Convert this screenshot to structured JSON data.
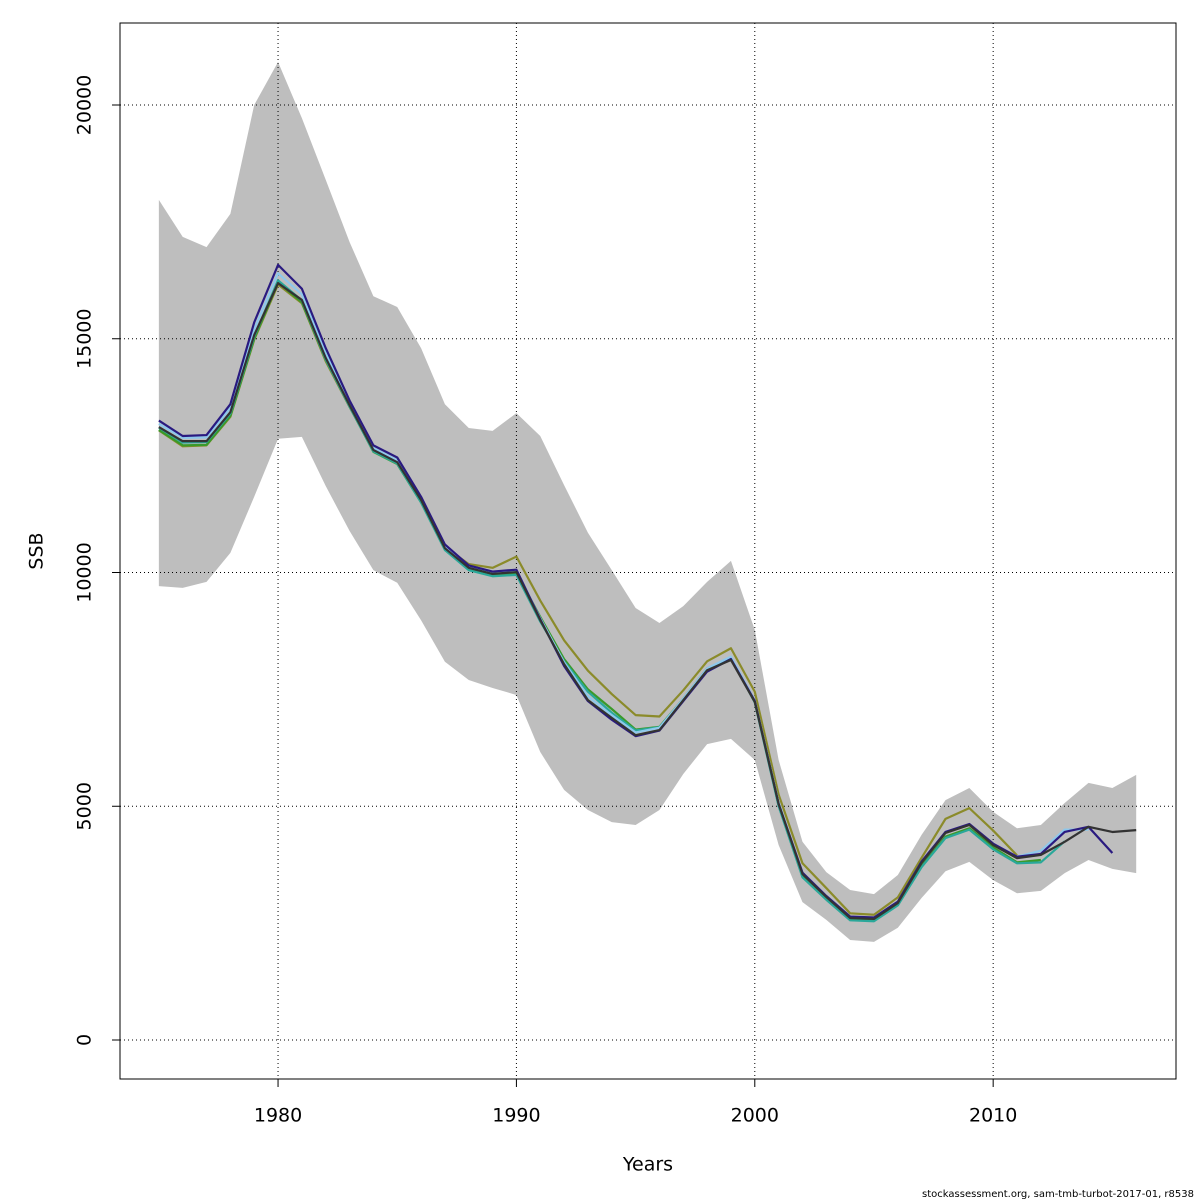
{
  "chart_data": {
    "type": "line",
    "x_label": "Years",
    "y_label": "SSB",
    "footer": "stockassessment.org, sam-tmb-turbot-2017-01, r8538",
    "x": [
      1975,
      1976,
      1977,
      1978,
      1979,
      1980,
      1981,
      1982,
      1983,
      1984,
      1985,
      1986,
      1987,
      1988,
      1989,
      1990,
      1991,
      1992,
      1993,
      1994,
      1995,
      1996,
      1997,
      1998,
      1999,
      2000,
      2001,
      2002,
      2003,
      2004,
      2005,
      2006,
      2007,
      2008,
      2009,
      2010,
      2011,
      2012,
      2013,
      2014,
      2015,
      2016
    ],
    "xlim": [
      1973.37,
      2017.67
    ],
    "xticks": [
      1980,
      1990,
      2000,
      2010
    ],
    "ylim": [
      -834,
      21754
    ],
    "yticks": [
      0,
      5000,
      10000,
      15000,
      20000
    ],
    "grid": true,
    "band": {
      "color": "#bebebe",
      "upper": [
        17970,
        17180,
        16960,
        17670,
        20000,
        20920,
        19720,
        18400,
        17070,
        15910,
        15680,
        14800,
        13600,
        13090,
        13030,
        13410,
        12920,
        11870,
        10850,
        10050,
        9240,
        8920,
        9280,
        9800,
        10250,
        8770,
        5990,
        4240,
        3590,
        3210,
        3120,
        3530,
        4390,
        5130,
        5390,
        4880,
        4530,
        4600,
        5070,
        5500,
        5390,
        5670
      ],
      "lower": [
        9710,
        9670,
        9800,
        10420,
        11620,
        12860,
        12900,
        11850,
        10890,
        10050,
        9780,
        8980,
        8090,
        7700,
        7530,
        7380,
        6160,
        5350,
        4920,
        4660,
        4600,
        4920,
        5690,
        6330,
        6440,
        5990,
        4170,
        2950,
        2570,
        2140,
        2100,
        2400,
        3040,
        3610,
        3810,
        3420,
        3140,
        3190,
        3570,
        3850,
        3660,
        3570
      ]
    },
    "series": [
      {
        "color": "#8b8b2a",
        "values": [
          13040,
          12700,
          12720,
          13330,
          14980,
          16160,
          15760,
          14520,
          13540,
          12600,
          12340,
          11530,
          10550,
          10180,
          10100,
          10340,
          9400,
          8550,
          7900,
          7400,
          6950,
          6920,
          7480,
          8100,
          8380,
          7450,
          5250,
          3780,
          3250,
          2710,
          2680,
          3050,
          3900,
          4730,
          4960,
          4480,
          3950,
          null,
          null,
          null,
          null,
          null
        ]
      },
      {
        "color": "#3a9a2a",
        "values": [
          13050,
          12720,
          12730,
          13350,
          15000,
          16200,
          15780,
          14550,
          13560,
          12580,
          12320,
          11500,
          10490,
          10060,
          9940,
          9990,
          9050,
          8150,
          7500,
          7080,
          6640,
          6700,
          7300,
          7950,
          8170,
          7240,
          5020,
          3500,
          3020,
          2580,
          2560,
          2900,
          3720,
          4350,
          4530,
          4120,
          3800,
          3850,
          null,
          null,
          null,
          null
        ]
      },
      {
        "color": "#2aa89a",
        "values": [
          13100,
          12780,
          12790,
          13400,
          15050,
          16250,
          15820,
          14560,
          13550,
          12590,
          12330,
          11500,
          10480,
          10050,
          9920,
          9950,
          8950,
          8100,
          7450,
          7000,
          6620,
          6690,
          7280,
          7930,
          8180,
          7220,
          5000,
          3480,
          3000,
          2560,
          2540,
          2880,
          3700,
          4320,
          4500,
          4080,
          3780,
          3800,
          4250,
          null,
          null,
          null
        ]
      },
      {
        "color": "#8ec8ec",
        "values": [
          13180,
          12880,
          12890,
          13520,
          15200,
          16400,
          15950,
          14700,
          13620,
          12660,
          12400,
          11580,
          10560,
          10110,
          9990,
          10030,
          9020,
          8080,
          7350,
          6950,
          6580,
          6680,
          7300,
          7950,
          8200,
          7260,
          5080,
          3560,
          3070,
          2620,
          2600,
          2940,
          3800,
          4440,
          4610,
          4180,
          3920,
          4050,
          4500,
          4500,
          null,
          null
        ]
      },
      {
        "color": "#2a1a80",
        "values": [
          13250,
          12920,
          12940,
          13600,
          15350,
          16580,
          16070,
          14800,
          13680,
          12720,
          12460,
          11620,
          10600,
          10150,
          10020,
          10060,
          9000,
          8000,
          7250,
          6850,
          6500,
          6620,
          7250,
          7880,
          8150,
          7250,
          5050,
          3580,
          3080,
          2640,
          2620,
          2960,
          3820,
          4450,
          4620,
          4200,
          3920,
          3980,
          4450,
          4560,
          4000,
          null
        ]
      },
      {
        "color": "#333333",
        "values": [
          13110,
          12810,
          12810,
          13430,
          15080,
          16190,
          15830,
          14590,
          13580,
          12620,
          12360,
          11550,
          10520,
          10100,
          9970,
          10010,
          8980,
          8040,
          7270,
          6890,
          6520,
          6630,
          7270,
          7910,
          8130,
          7230,
          5050,
          3550,
          3060,
          2610,
          2590,
          2930,
          3790,
          4430,
          4600,
          4170,
          3890,
          3960,
          4240,
          4560,
          4450,
          4490
        ]
      }
    ]
  }
}
